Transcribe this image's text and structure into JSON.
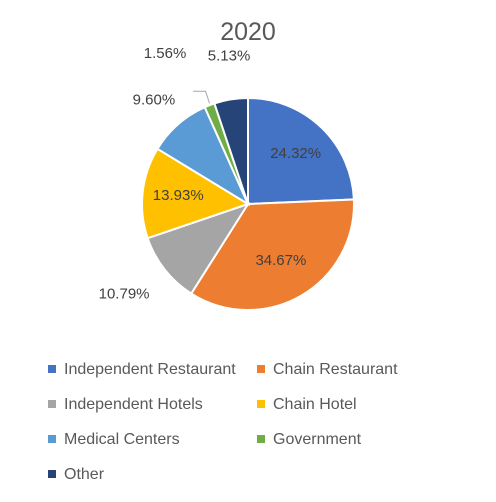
{
  "chart_data": {
    "type": "pie",
    "title": "2020",
    "categories": [
      "Independent Restaurant",
      "Chain Restaurant",
      "Independent Hotels",
      "Chain Hotel",
      "Medical Centers",
      "Government",
      "Other"
    ],
    "values": [
      24.32,
      34.67,
      10.79,
      13.93,
      9.6,
      1.56,
      5.13
    ],
    "labels": [
      "24.32%",
      "34.67%",
      "10.79%",
      "13.93%",
      "9.60%",
      "1.56%",
      "5.13%"
    ],
    "colors": [
      "#4472C4",
      "#ED7D31",
      "#A5A5A5",
      "#FFC000",
      "#5B9BD5",
      "#70AD47",
      "#264478"
    ],
    "legend_position": "bottom"
  }
}
